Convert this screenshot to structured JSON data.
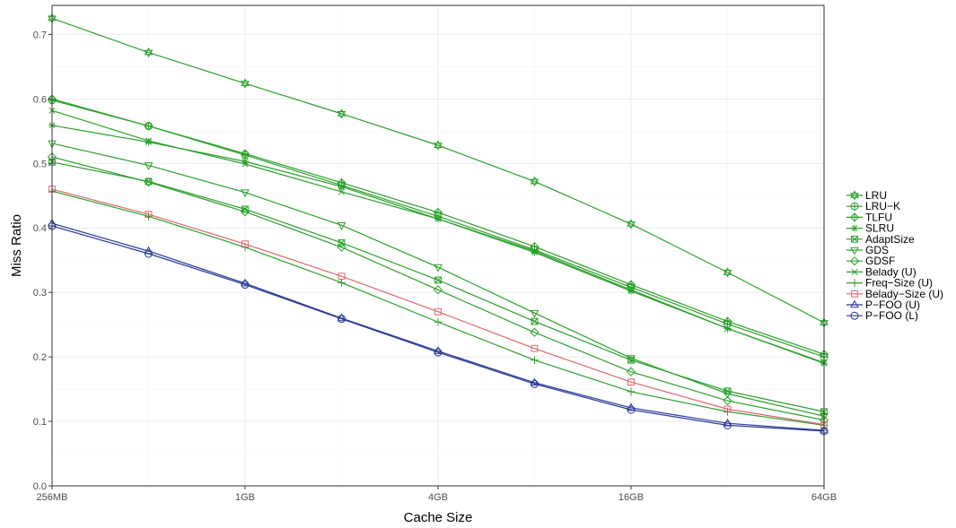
{
  "chart_data": {
    "type": "line",
    "xlabel": "Cache Size",
    "ylabel": "Miss Ratio",
    "x_scale": "log2",
    "x": [
      "256MB",
      "512MB",
      "1GB",
      "2GB",
      "4GB",
      "8GB",
      "16GB",
      "32GB",
      "64GB"
    ],
    "x_tick_labels": [
      "256MB",
      "1GB",
      "4GB",
      "16GB",
      "64GB"
    ],
    "y_ticks": [
      "0.0",
      "0.1",
      "0.2",
      "0.3",
      "0.4",
      "0.5",
      "0.6",
      "0.7"
    ],
    "ylim": [
      0,
      0.745
    ],
    "grid": true,
    "legend_position": "right",
    "series": [
      {
        "name": "LRU",
        "color": "#2ca02c",
        "marker": "star-of-david",
        "values": [
          0.725,
          0.672,
          0.624,
          0.577,
          0.528,
          0.472,
          0.406,
          0.331,
          0.253
        ]
      },
      {
        "name": "LRU−K",
        "color": "#2ca02c",
        "marker": "circle-plus",
        "values": [
          0.598,
          0.558,
          0.513,
          0.466,
          0.418,
          0.366,
          0.308,
          0.251,
          0.2
        ]
      },
      {
        "name": "TLFU",
        "color": "#2ca02c",
        "marker": "diamond-plus",
        "values": [
          0.6,
          0.558,
          0.515,
          0.47,
          0.424,
          0.371,
          0.312,
          0.255,
          0.204
        ]
      },
      {
        "name": "SLRU",
        "color": "#2ca02c",
        "marker": "asterisk",
        "values": [
          0.559,
          0.533,
          0.503,
          0.464,
          0.414,
          0.362,
          0.302,
          0.244,
          0.19
        ]
      },
      {
        "name": "AdaptSize",
        "color": "#2ca02c",
        "marker": "square-cross",
        "values": [
          0.502,
          0.472,
          0.429,
          0.377,
          0.319,
          0.255,
          0.195,
          0.147,
          0.115
        ]
      },
      {
        "name": "GDS",
        "color": "#2ca02c",
        "marker": "triangle-down",
        "values": [
          0.531,
          0.497,
          0.455,
          0.404,
          0.339,
          0.268,
          0.198,
          0.143,
          0.108
        ]
      },
      {
        "name": "GDSF",
        "color": "#2ca02c",
        "marker": "diamond",
        "values": [
          0.51,
          0.471,
          0.425,
          0.37,
          0.304,
          0.238,
          0.177,
          0.132,
          0.102
        ]
      },
      {
        "name": "Belady (U)",
        "color": "#2ca02c",
        "marker": "x",
        "values": [
          0.582,
          0.535,
          0.499,
          0.456,
          0.414,
          0.364,
          0.304,
          0.244,
          0.191
        ]
      },
      {
        "name": "Freq−Size (U)",
        "color": "#2ca02c",
        "marker": "plus",
        "values": [
          0.457,
          0.418,
          0.37,
          0.315,
          0.254,
          0.195,
          0.146,
          0.115,
          0.094
        ]
      },
      {
        "name": "Belady−Size (U)",
        "color": "#e0666e",
        "marker": "square",
        "values": [
          0.46,
          0.421,
          0.375,
          0.325,
          0.27,
          0.213,
          0.161,
          0.119,
          0.095
        ]
      },
      {
        "name": "P−FOO (U)",
        "color": "#2b3a98",
        "marker": "triangle",
        "values": [
          0.407,
          0.364,
          0.314,
          0.26,
          0.209,
          0.16,
          0.121,
          0.097,
          0.086
        ]
      },
      {
        "name": "P−FOO (L)",
        "color": "#2b3a98",
        "marker": "circle",
        "values": [
          0.403,
          0.36,
          0.312,
          0.259,
          0.207,
          0.158,
          0.118,
          0.094,
          0.085
        ]
      }
    ]
  }
}
